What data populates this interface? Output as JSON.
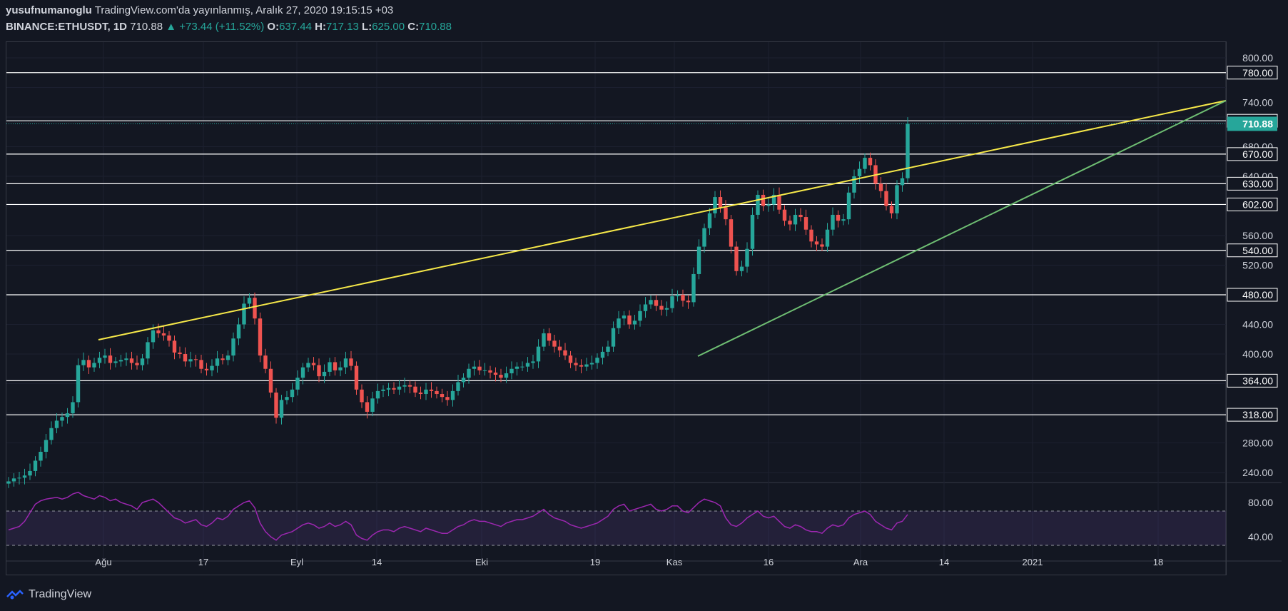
{
  "header": {
    "author": "yusufnumanoglu",
    "published": "TradingView.com'da yayınlanmış, Aralık 27, 2020 19:15:15 +03",
    "symbol": "BINANCE:ETHUSDT, 1D",
    "last": "710.88",
    "change": "▲ +73.44 (+11.52%)",
    "o_label": "O:",
    "o": "637.44",
    "h_label": "H:",
    "h": "717.13",
    "l_label": "L:",
    "l": "625.00",
    "c_label": "C:",
    "c": "710.88"
  },
  "footer": {
    "brand": "TradingView",
    "logo_icon": "tradingview-logo-icon"
  },
  "colors": {
    "bg": "#131722",
    "up": "#26a69a",
    "down": "#ef5350",
    "grid": "#1c2030",
    "trend_upper": "#f6e849",
    "trend_lower": "#6fbf73",
    "rsi": "#9c27b0",
    "level": "#ffffff",
    "text": "#d1d4dc"
  },
  "chart_data": [
    {
      "type": "candlestick",
      "symbol": "BINANCE:ETHUSDT",
      "interval": "1D",
      "ylim": [
        220,
        820
      ],
      "y_ticks": [
        800,
        740,
        680,
        640,
        600,
        560,
        520,
        440,
        400,
        280,
        240
      ],
      "x_ticks": [
        "Ağu",
        "17",
        "Eyl",
        "14",
        "Eki",
        "19",
        "Kas",
        "16",
        "Ara",
        "14",
        "2021",
        "18"
      ],
      "horizontal_levels": [
        780,
        715,
        670,
        630,
        602,
        540,
        480,
        364,
        318
      ],
      "last_price": 710.88,
      "close_series": [
        228,
        232,
        233,
        236,
        242,
        256,
        268,
        284,
        300,
        310,
        315,
        320,
        335,
        385,
        392,
        382,
        388,
        395,
        398,
        388,
        390,
        392,
        394,
        388,
        385,
        394,
        416,
        432,
        428,
        425,
        418,
        402,
        400,
        390,
        393,
        392,
        380,
        378,
        384,
        394,
        392,
        398,
        421,
        440,
        468,
        476,
        448,
        398,
        380,
        348,
        314,
        338,
        342,
        352,
        368,
        382,
        388,
        385,
        370,
        376,
        389,
        378,
        382,
        394,
        384,
        352,
        335,
        322,
        340,
        350,
        352,
        354,
        352,
        356,
        358,
        356,
        348,
        346,
        352,
        350,
        346,
        342,
        338,
        350,
        362,
        368,
        380,
        383,
        378,
        378,
        375,
        372,
        368,
        374,
        380,
        383,
        383,
        388,
        390,
        410,
        428,
        418,
        410,
        405,
        398,
        388,
        385,
        383,
        386,
        388,
        395,
        403,
        410,
        435,
        448,
        452,
        440,
        445,
        458,
        467,
        473,
        465,
        460,
        462,
        478,
        480,
        472,
        470,
        508,
        545,
        570,
        590,
        612,
        598,
        582,
        545,
        512,
        518,
        542,
        588,
        615,
        600,
        602,
        615,
        595,
        580,
        575,
        588,
        585,
        568,
        552,
        548,
        545,
        568,
        588,
        580,
        582,
        618,
        640,
        650,
        665,
        655,
        630,
        620,
        600,
        590,
        628,
        637.44,
        710.88
      ]
    },
    {
      "type": "line",
      "name": "RSI",
      "ylim": [
        20,
        100
      ],
      "y_ticks": [
        80,
        40
      ],
      "band": [
        70,
        30
      ],
      "values": [
        48,
        50,
        52,
        58,
        68,
        78,
        82,
        84,
        85,
        86,
        84,
        86,
        90,
        92,
        88,
        86,
        84,
        88,
        86,
        82,
        84,
        80,
        78,
        76,
        72,
        80,
        82,
        84,
        80,
        74,
        68,
        62,
        60,
        56,
        58,
        60,
        54,
        52,
        56,
        62,
        60,
        64,
        72,
        76,
        80,
        82,
        74,
        56,
        46,
        40,
        36,
        42,
        44,
        46,
        50,
        54,
        56,
        54,
        50,
        52,
        56,
        52,
        54,
        58,
        54,
        42,
        38,
        36,
        42,
        46,
        48,
        48,
        46,
        50,
        52,
        50,
        48,
        46,
        50,
        48,
        46,
        44,
        44,
        48,
        52,
        54,
        58,
        60,
        58,
        58,
        56,
        54,
        52,
        56,
        58,
        60,
        60,
        62,
        64,
        68,
        72,
        66,
        62,
        60,
        58,
        54,
        52,
        50,
        52,
        54,
        56,
        60,
        64,
        72,
        76,
        78,
        70,
        72,
        74,
        76,
        78,
        72,
        70,
        72,
        76,
        76,
        70,
        68,
        74,
        80,
        84,
        82,
        80,
        76,
        62,
        54,
        52,
        56,
        62,
        66,
        70,
        64,
        62,
        64,
        58,
        52,
        50,
        54,
        52,
        48,
        46,
        46,
        44,
        50,
        54,
        52,
        54,
        62,
        66,
        68,
        70,
        66,
        58,
        54,
        50,
        48,
        56,
        58,
        66
      ]
    }
  ]
}
